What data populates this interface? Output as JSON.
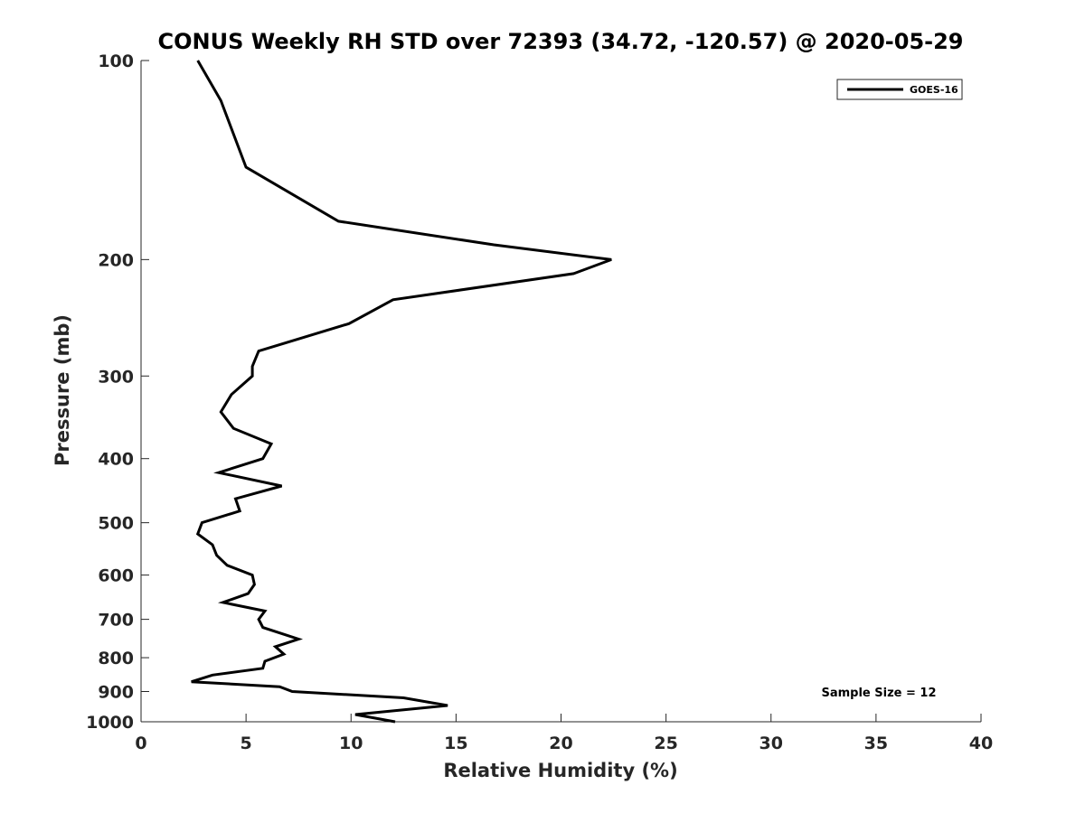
{
  "chart_data": {
    "type": "line",
    "title": "CONUS Weekly RH STD over 72393 (34.72, -120.57) @ 2020-05-29",
    "xlabel": "Relative Humidity (%)",
    "ylabel": "Pressure (mb)",
    "xlim": [
      0,
      40
    ],
    "ylim": [
      100,
      1000
    ],
    "y_scale": "log",
    "y_reversed": true,
    "x_ticks": [
      0,
      5,
      10,
      15,
      20,
      25,
      30,
      35,
      40
    ],
    "x_tick_labels": [
      "0",
      "5",
      "10",
      "15",
      "20",
      "25",
      "30",
      "35",
      "40"
    ],
    "y_ticks": [
      100,
      200,
      300,
      400,
      500,
      600,
      700,
      800,
      900,
      1000
    ],
    "y_tick_labels": [
      "100",
      "200",
      "300",
      "400",
      "500",
      "600",
      "700",
      "800",
      "900",
      "1000"
    ],
    "grid": false,
    "legend_position": "top-right",
    "annotation": "Sample Size = 12",
    "series": [
      {
        "name": "GOES-16",
        "color": "#000000",
        "x": [
          2.7,
          3.8,
          5.0,
          9.4,
          16.8,
          22.4,
          20.6,
          12.0,
          9.9,
          5.6,
          5.3,
          5.3,
          4.3,
          3.8,
          4.4,
          6.2,
          5.8,
          3.7,
          6.7,
          4.5,
          4.7,
          2.9,
          2.7,
          3.4,
          3.6,
          4.1,
          5.3,
          5.4,
          5.1,
          3.9,
          5.9,
          5.6,
          5.8,
          7.5,
          6.4,
          6.8,
          5.9,
          5.8,
          3.4,
          2.4,
          6.6,
          7.2,
          12.5,
          14.6,
          10.2,
          12.1
        ],
        "y": [
          100,
          115,
          145,
          175,
          190,
          200,
          210,
          230,
          250,
          275,
          290,
          300,
          320,
          340,
          360,
          380,
          400,
          420,
          440,
          460,
          480,
          500,
          520,
          540,
          560,
          580,
          600,
          620,
          640,
          660,
          680,
          700,
          720,
          750,
          770,
          790,
          810,
          830,
          850,
          870,
          885,
          900,
          920,
          945,
          975,
          1000
        ]
      }
    ]
  }
}
